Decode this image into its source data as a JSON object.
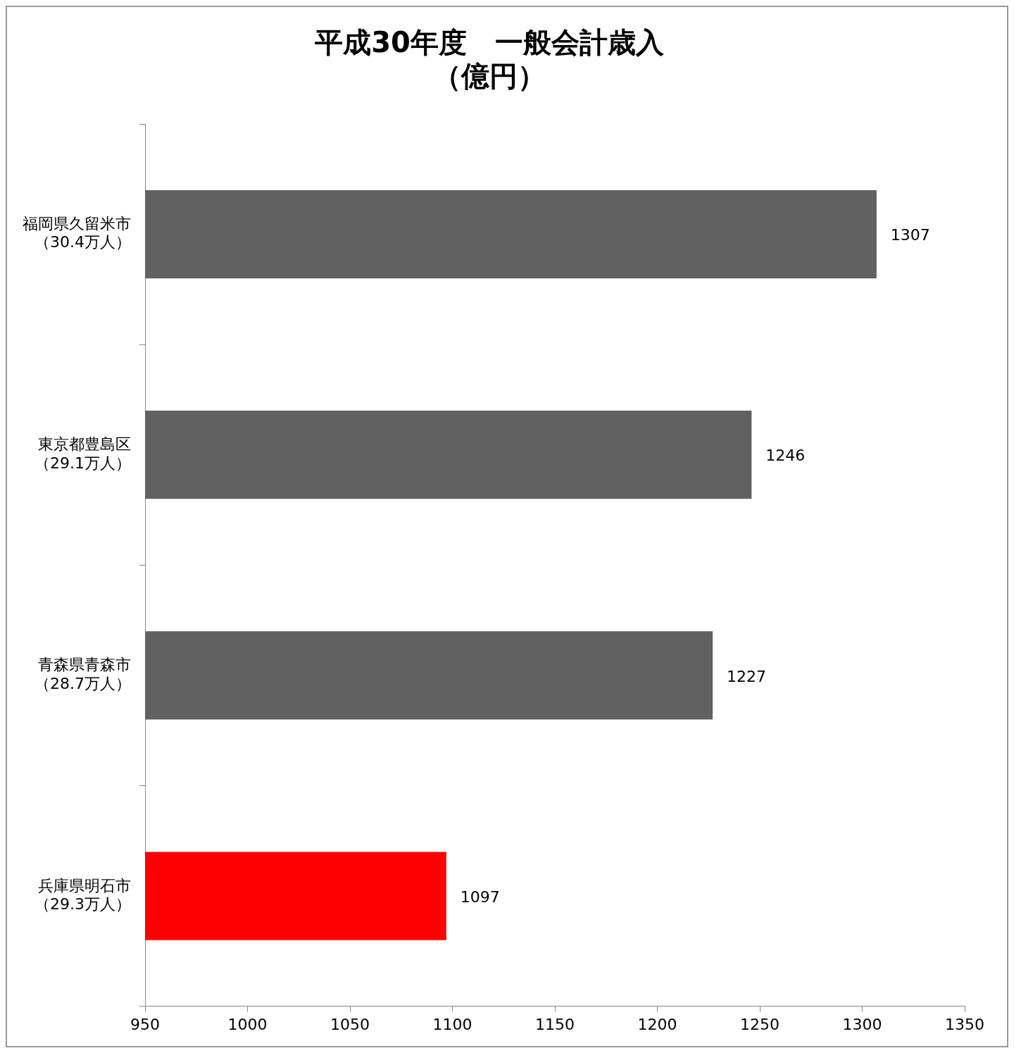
{
  "chart_data": {
    "type": "bar",
    "orientation": "horizontal",
    "title": "平成30年度　一般会計歳入（億円）",
    "categories": [
      "福岡県久留米市（30.4万人）",
      "東京都豊島区（29.1万人）",
      "青森県青森市（28.7万人）",
      "兵庫県明石市（29.3万人）"
    ],
    "values": [
      1307,
      1246,
      1227,
      1097
    ],
    "colors": [
      "#616161",
      "#616161",
      "#616161",
      "#ff0000"
    ],
    "xlim": [
      950,
      1350
    ],
    "xticks": [
      950,
      1000,
      1050,
      1100,
      1150,
      1200,
      1250,
      1300,
      1350
    ],
    "grid": false,
    "data_labels": true,
    "legend": false
  }
}
